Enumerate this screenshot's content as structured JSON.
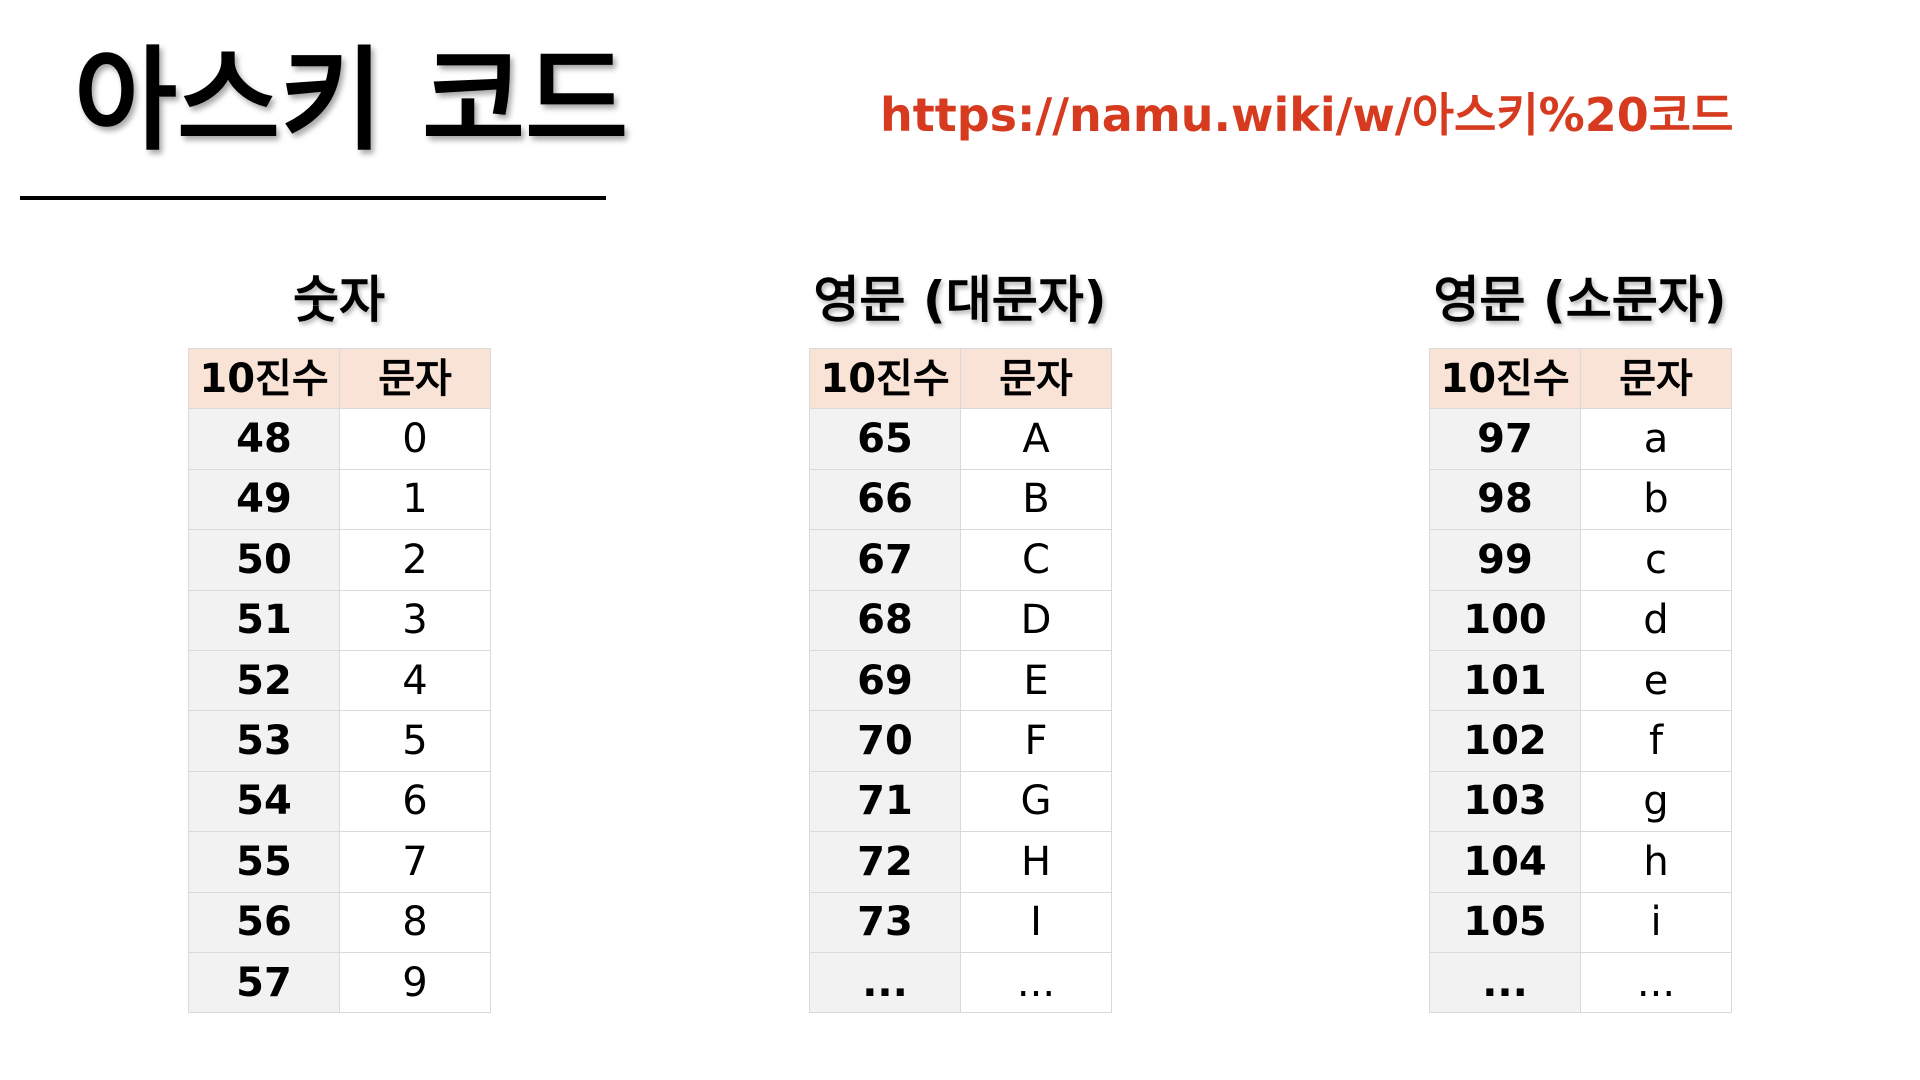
{
  "title": "아스키 코드",
  "link": {
    "text": "https://namu.wiki/w/아스키%20코드",
    "color": "#d63a1f"
  },
  "header_bg": "#f9e3d6",
  "tables": [
    {
      "heading": "숫자",
      "columns": [
        "10진수",
        "문자"
      ],
      "rows": [
        [
          "48",
          "0"
        ],
        [
          "49",
          "1"
        ],
        [
          "50",
          "2"
        ],
        [
          "51",
          "3"
        ],
        [
          "52",
          "4"
        ],
        [
          "53",
          "5"
        ],
        [
          "54",
          "6"
        ],
        [
          "55",
          "7"
        ],
        [
          "56",
          "8"
        ],
        [
          "57",
          "9"
        ]
      ]
    },
    {
      "heading": "영문 (대문자)",
      "columns": [
        "10진수",
        "문자"
      ],
      "rows": [
        [
          "65",
          "A"
        ],
        [
          "66",
          "B"
        ],
        [
          "67",
          "C"
        ],
        [
          "68",
          "D"
        ],
        [
          "69",
          "E"
        ],
        [
          "70",
          "F"
        ],
        [
          "71",
          "G"
        ],
        [
          "72",
          "H"
        ],
        [
          "73",
          "I"
        ],
        [
          "...",
          "..."
        ]
      ]
    },
    {
      "heading": "영문 (소문자)",
      "columns": [
        "10진수",
        "문자"
      ],
      "rows": [
        [
          "97",
          "a"
        ],
        [
          "98",
          "b"
        ],
        [
          "99",
          "c"
        ],
        [
          "100",
          "d"
        ],
        [
          "101",
          "e"
        ],
        [
          "102",
          "f"
        ],
        [
          "103",
          "g"
        ],
        [
          "104",
          "h"
        ],
        [
          "105",
          "i"
        ],
        [
          "...",
          "..."
        ]
      ]
    }
  ]
}
